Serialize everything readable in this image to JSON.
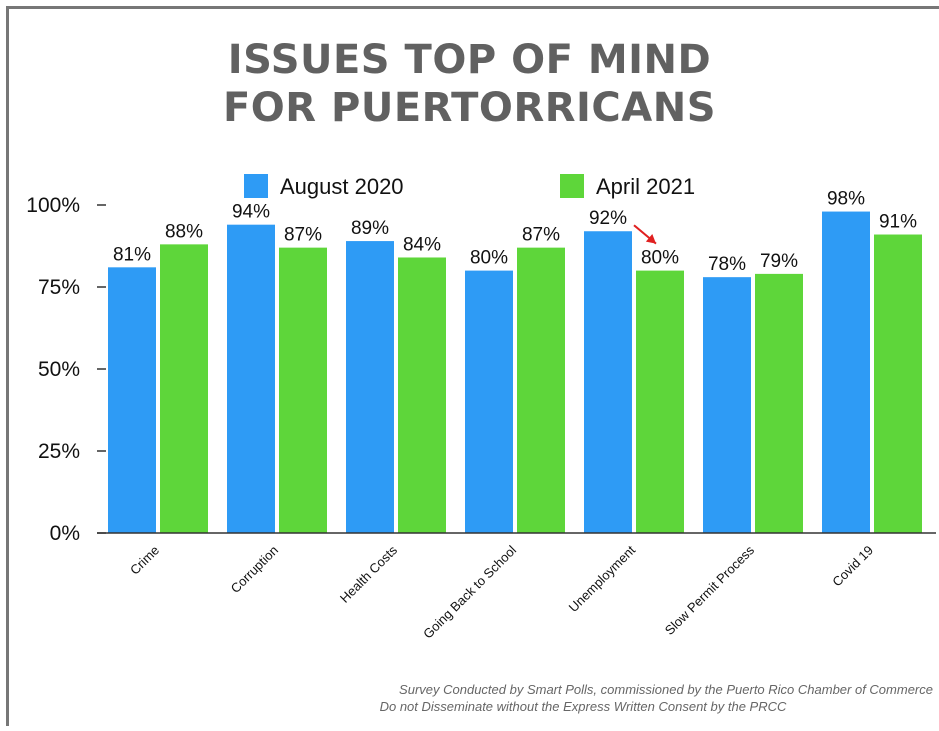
{
  "title_line1": "ISSUES TOP OF MIND",
  "title_line2": "FOR PUERTORRICANS",
  "footer_line1": "Survey Conducted by Smart Polls, commissioned by the Puerto Rico Chamber of Commerce",
  "footer_line2": "Do not Disseminate without the Express Written Consent by the PRCC",
  "colors": {
    "august": "#2e9bf5",
    "april": "#5ed63a",
    "arrow": "#e02020"
  },
  "chart_data": {
    "type": "bar",
    "title": "ISSUES TOP OF MIND FOR PUERTORRICANS",
    "categories": [
      "Crime",
      "Corruption",
      "Health Costs",
      "Going Back to School",
      "Unemployment",
      "Slow Permit Process",
      "Covid 19"
    ],
    "series": [
      {
        "name": "August 2020",
        "values": [
          81,
          94,
          89,
          80,
          92,
          78,
          98
        ],
        "labels": [
          "81%",
          "94%",
          "89%",
          "80%",
          "92%",
          "78%",
          "98%"
        ]
      },
      {
        "name": "April 2021",
        "values": [
          88,
          87,
          84,
          87,
          80,
          79,
          91
        ],
        "labels": [
          "88%",
          "87%",
          "84%",
          "87%",
          "80%",
          "79%",
          "91%"
        ]
      }
    ],
    "ylim": [
      0,
      100
    ],
    "yticks": [
      0,
      25,
      50,
      75,
      100
    ],
    "ytick_labels": [
      "0%",
      "25%",
      "50%",
      "75%",
      "100%"
    ],
    "grid": false,
    "legend": "top",
    "annotations": [
      {
        "type": "arrow",
        "category": "Unemployment",
        "from_series": "August 2020",
        "to_series": "April 2021"
      }
    ]
  }
}
